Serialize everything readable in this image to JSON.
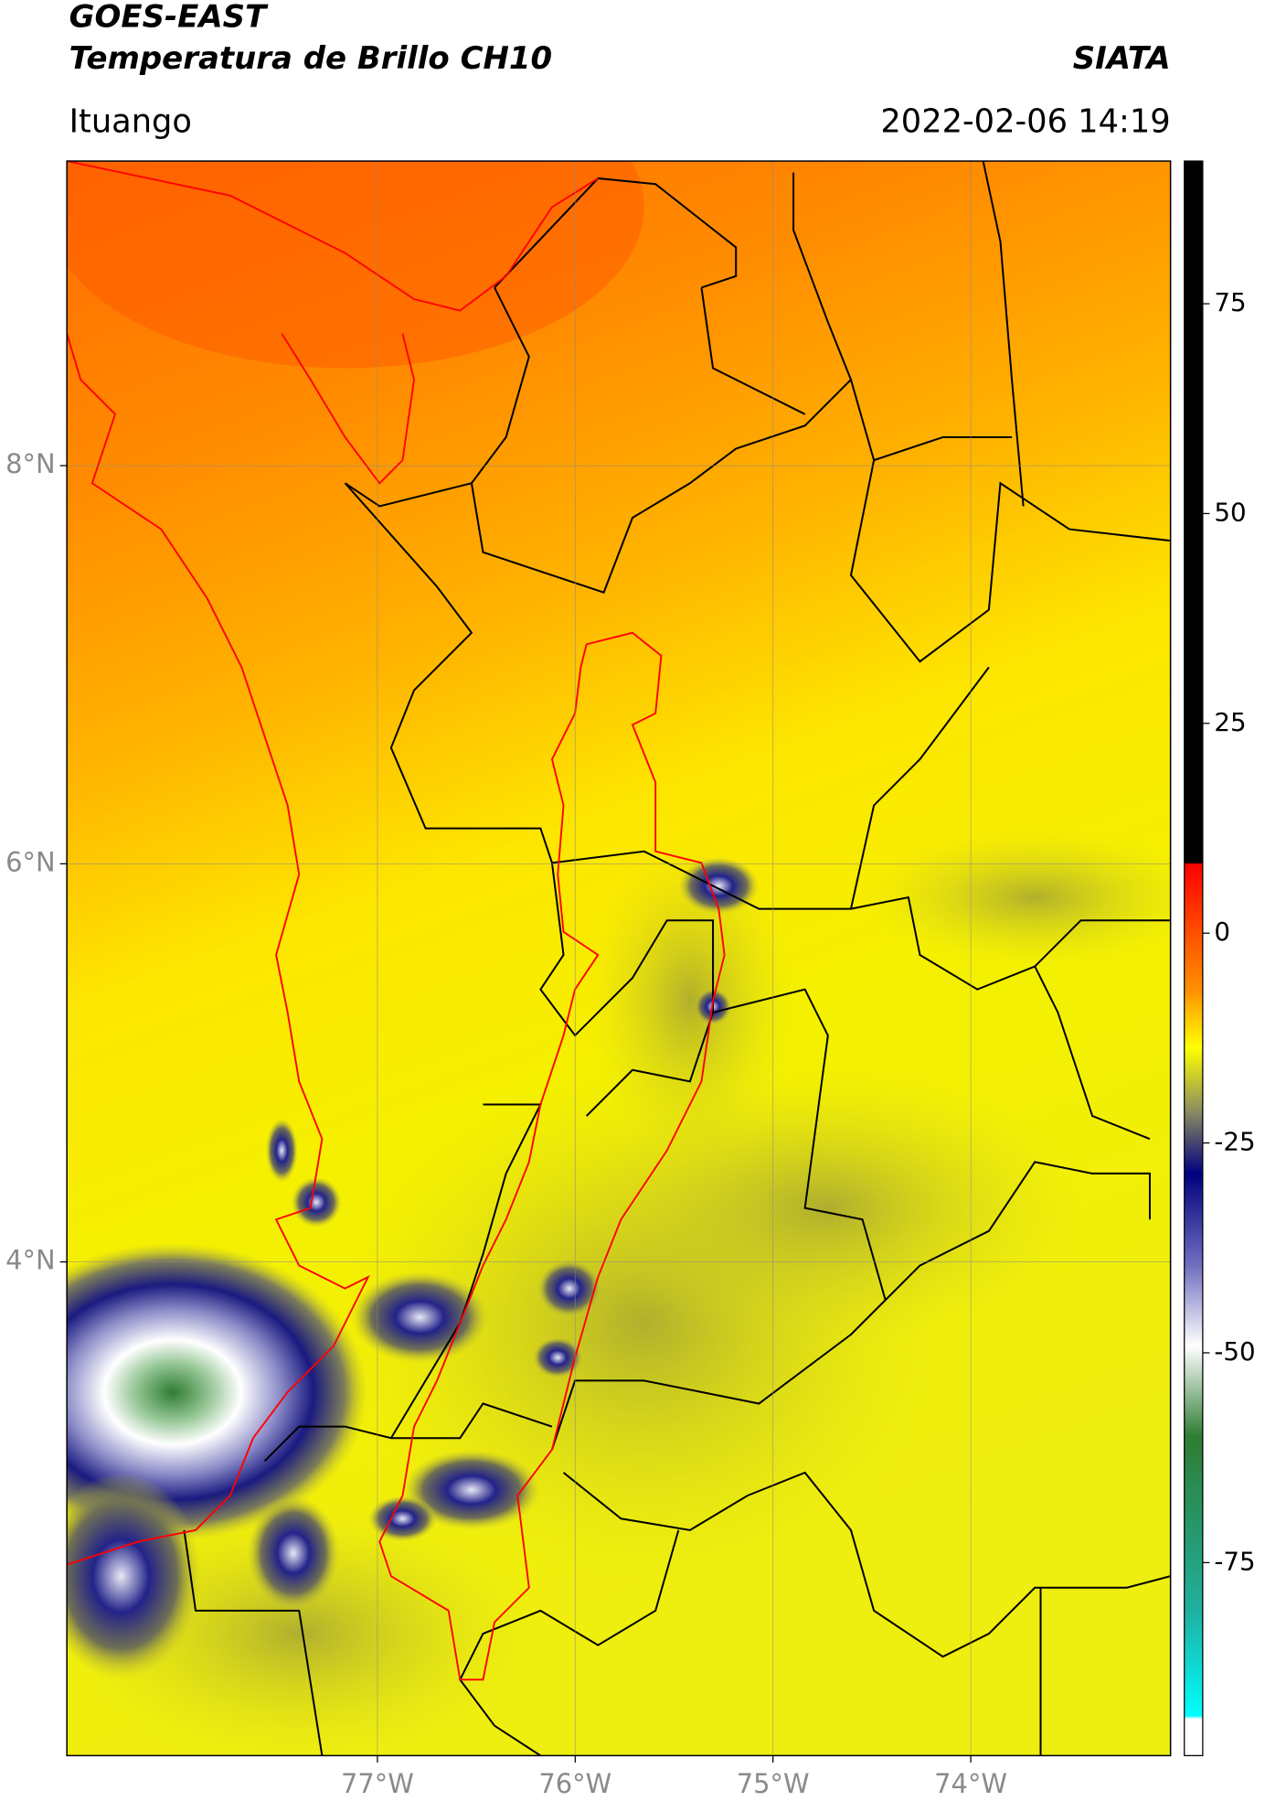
{
  "chart_data": {
    "type": "map",
    "title": "GOES-EAST",
    "subtitle": "Temperatura de Brillo CH10",
    "source": "SIATA",
    "location": "Ituango",
    "timestamp": "2022-02-06 14:19",
    "xlim": [
      -78.57,
      -72.99
    ],
    "ylim": [
      1.52,
      9.53
    ],
    "xticks": [
      {
        "value": -77,
        "label": "77°W"
      },
      {
        "value": -76,
        "label": "76°W"
      },
      {
        "value": -75,
        "label": "75°W"
      },
      {
        "value": -74,
        "label": "74°W"
      }
    ],
    "yticks": [
      {
        "value": 8,
        "label": "8°N"
      },
      {
        "value": 6,
        "label": "6°N"
      },
      {
        "value": 4,
        "label": "4°N"
      }
    ],
    "grid": true,
    "colorbar": {
      "lim": [
        -98,
        92
      ],
      "ticks": [
        75,
        50,
        25,
        0,
        -25,
        -50,
        -75
      ]
    }
  }
}
